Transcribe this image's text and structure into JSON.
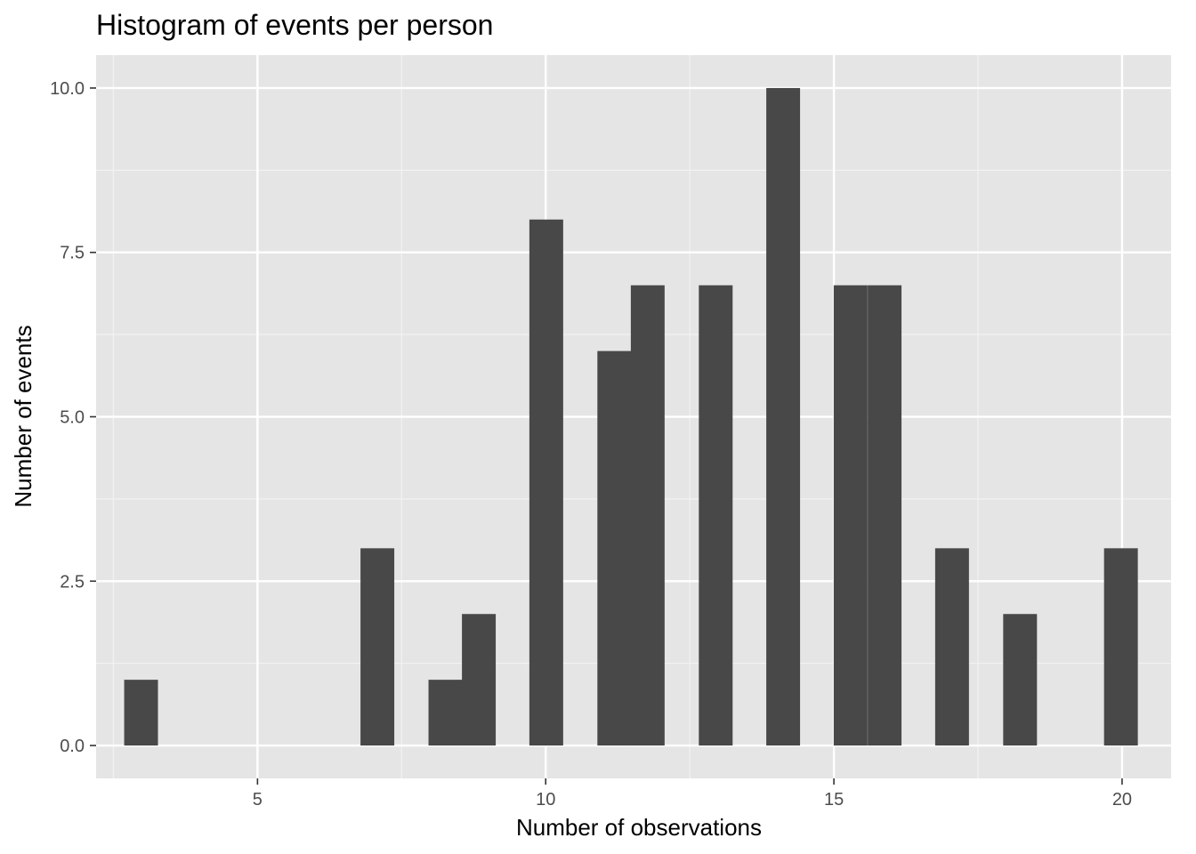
{
  "chart_data": {
    "type": "bar",
    "title": "Histogram of events per person",
    "xlabel": "Number of observations",
    "ylabel": "Number of events",
    "xlim": [
      2.2,
      20.85
    ],
    "ylim": [
      -0.5,
      10.5
    ],
    "x_major_ticks": [
      5,
      10,
      15,
      20
    ],
    "x_minor_ticks": [
      2.5,
      7.5,
      12.5,
      17.5
    ],
    "y_major_ticks": [
      0,
      2.5,
      5,
      7.5,
      10
    ],
    "y_minor_ticks": [
      1.25,
      3.75,
      6.25,
      8.75
    ],
    "x_tick_labels": [
      "5",
      "10",
      "15",
      "20"
    ],
    "y_tick_labels": [
      "0.0",
      "2.5",
      "5.0",
      "7.5",
      "10.0"
    ],
    "bin_width": 0.5862,
    "bins": [
      {
        "x": 2.98,
        "count": 1
      },
      {
        "x": 7.08,
        "count": 3
      },
      {
        "x": 8.26,
        "count": 1
      },
      {
        "x": 8.84,
        "count": 2
      },
      {
        "x": 10.01,
        "count": 8
      },
      {
        "x": 11.19,
        "count": 6
      },
      {
        "x": 11.77,
        "count": 7
      },
      {
        "x": 12.95,
        "count": 7
      },
      {
        "x": 14.12,
        "count": 10
      },
      {
        "x": 15.29,
        "count": 7
      },
      {
        "x": 15.88,
        "count": 7
      },
      {
        "x": 17.05,
        "count": 3
      },
      {
        "x": 18.23,
        "count": 2
      },
      {
        "x": 19.98,
        "count": 3
      }
    ],
    "grid": true,
    "colors": {
      "panel": "#e5e5e5",
      "grid_major": "#ffffff",
      "grid_minor": "#f2f2f2",
      "bar": "#484848",
      "tick": "#333333"
    }
  }
}
